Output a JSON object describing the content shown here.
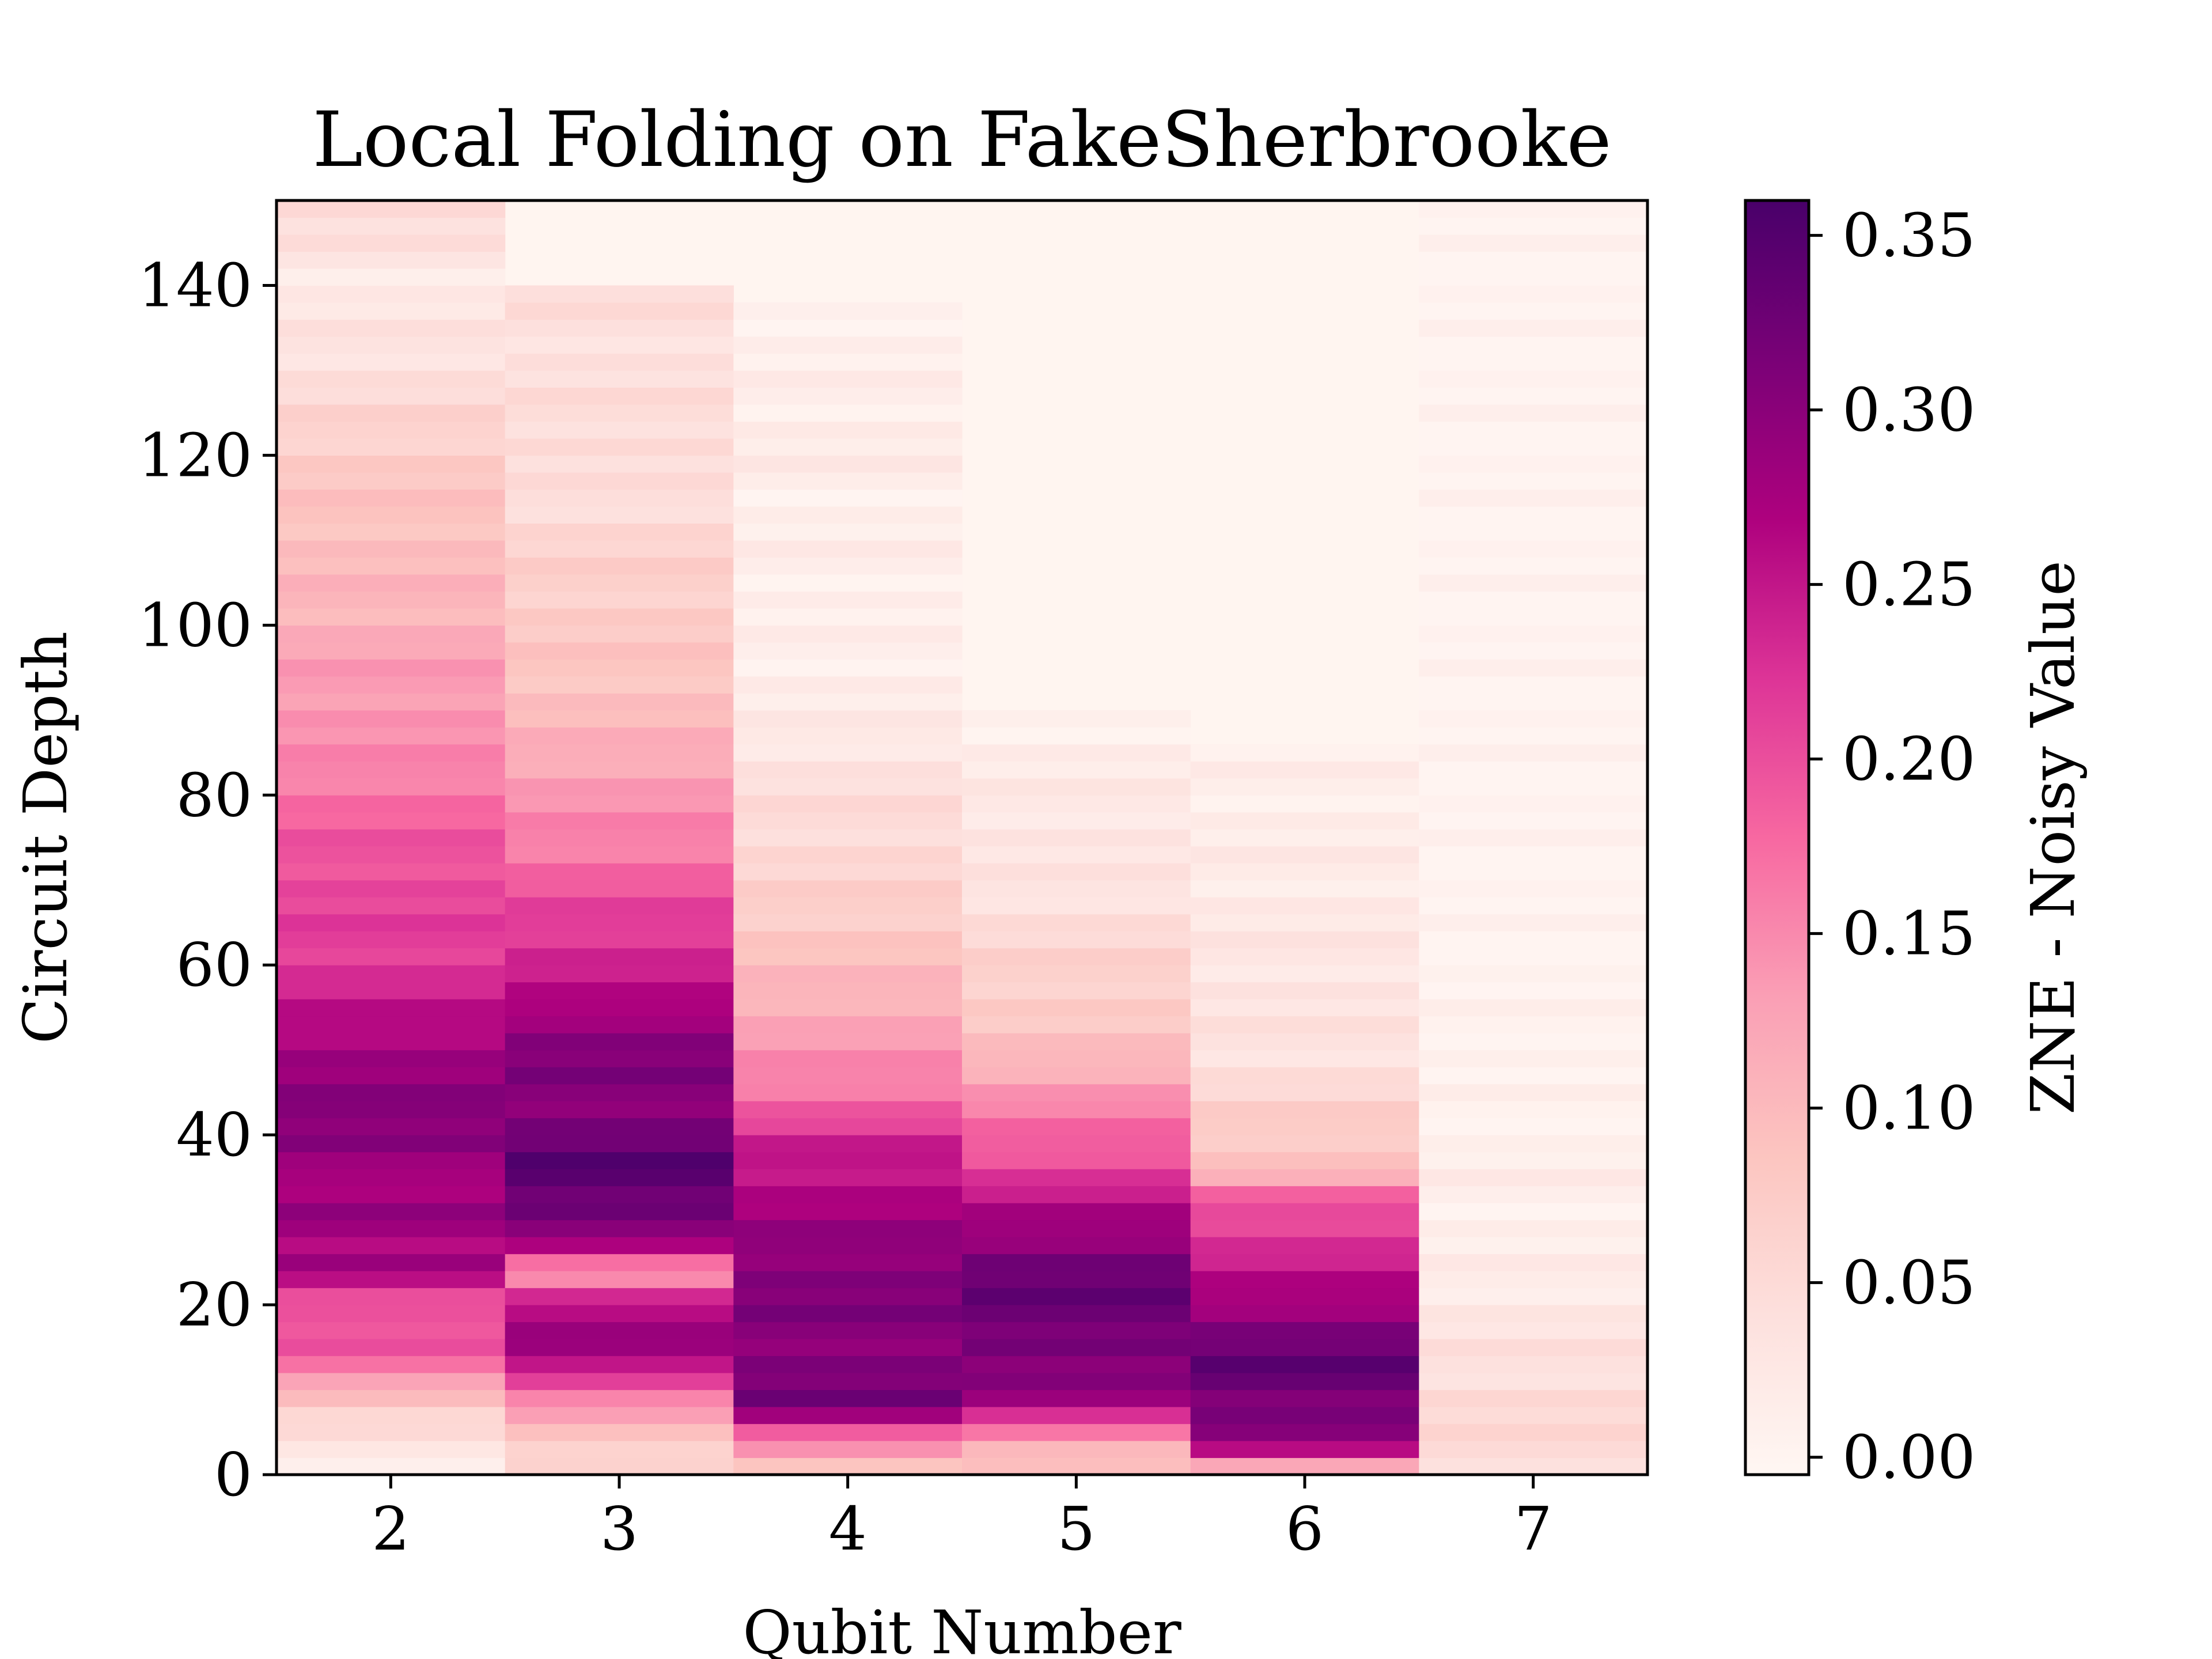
{
  "chart_data": {
    "type": "heatmap",
    "title": "Local Folding on FakeSherbrooke",
    "xlabel": "Qubit Number",
    "ylabel": "Circuit Depth",
    "colorbar_label": "ZNE - Noisy Value",
    "x_categories": [
      "2",
      "3",
      "4",
      "5",
      "6",
      "7"
    ],
    "x_tick_labels": [
      "2",
      "3",
      "4",
      "5",
      "6",
      "7"
    ],
    "y_tick_values": [
      0,
      20,
      40,
      60,
      80,
      100,
      120,
      140
    ],
    "y_tick_labels": [
      "0",
      "20",
      "40",
      "60",
      "80",
      "100",
      "120",
      "140"
    ],
    "colorbar_tick_values": [
      0.0,
      0.05,
      0.1,
      0.15,
      0.2,
      0.25,
      0.3,
      0.35
    ],
    "colorbar_tick_labels": [
      "0.00",
      "0.05",
      "0.10",
      "0.15",
      "0.20",
      "0.25",
      "0.30",
      "0.35"
    ],
    "ylim": [
      0,
      150
    ],
    "vmin": -0.005,
    "vmax": 0.36,
    "colormap": "RdPu",
    "background_color": "#fff5f0",
    "row_step": 2,
    "max_depth_per_qubit": [
      150,
      140,
      138,
      90,
      86,
      150
    ],
    "z_profiles": {
      "2": [
        [
          0,
          0.02
        ],
        [
          4,
          0.03
        ],
        [
          8,
          0.07
        ],
        [
          12,
          0.16
        ],
        [
          16,
          0.2
        ],
        [
          20,
          0.19
        ],
        [
          24,
          0.28
        ],
        [
          28,
          0.26
        ],
        [
          31,
          0.31
        ],
        [
          34,
          0.25
        ],
        [
          38,
          0.3
        ],
        [
          42,
          0.31
        ],
        [
          46,
          0.29
        ],
        [
          50,
          0.28
        ],
        [
          55,
          0.25
        ],
        [
          60,
          0.22
        ],
        [
          66,
          0.21
        ],
        [
          72,
          0.2
        ],
        [
          78,
          0.18
        ],
        [
          84,
          0.15
        ],
        [
          90,
          0.14
        ],
        [
          96,
          0.13
        ],
        [
          100,
          0.11
        ],
        [
          106,
          0.1
        ],
        [
          112,
          0.09
        ],
        [
          118,
          0.08
        ],
        [
          124,
          0.06
        ],
        [
          130,
          0.04
        ],
        [
          136,
          0.03
        ],
        [
          140,
          0.02
        ],
        [
          146,
          0.04
        ],
        [
          150,
          0.05
        ]
      ],
      "3": [
        [
          0,
          0.05
        ],
        [
          6,
          0.1
        ],
        [
          10,
          0.18
        ],
        [
          14,
          0.29
        ],
        [
          20,
          0.26
        ],
        [
          24,
          0.13
        ],
        [
          28,
          0.3
        ],
        [
          32,
          0.33
        ],
        [
          36,
          0.35
        ],
        [
          40,
          0.32
        ],
        [
          44,
          0.3
        ],
        [
          48,
          0.31
        ],
        [
          52,
          0.3
        ],
        [
          56,
          0.26
        ],
        [
          62,
          0.23
        ],
        [
          68,
          0.2
        ],
        [
          74,
          0.16
        ],
        [
          80,
          0.14
        ],
        [
          86,
          0.11
        ],
        [
          92,
          0.09
        ],
        [
          98,
          0.08
        ],
        [
          104,
          0.07
        ],
        [
          110,
          0.06
        ],
        [
          116,
          0.04
        ],
        [
          122,
          0.05
        ],
        [
          130,
          0.04
        ],
        [
          136,
          0.04
        ],
        [
          140,
          0.05
        ]
      ],
      "4": [
        [
          0,
          0.07
        ],
        [
          4,
          0.16
        ],
        [
          8,
          0.32
        ],
        [
          12,
          0.31
        ],
        [
          16,
          0.3
        ],
        [
          20,
          0.31
        ],
        [
          26,
          0.3
        ],
        [
          30,
          0.28
        ],
        [
          34,
          0.26
        ],
        [
          38,
          0.25
        ],
        [
          42,
          0.2
        ],
        [
          46,
          0.16
        ],
        [
          52,
          0.13
        ],
        [
          58,
          0.1
        ],
        [
          64,
          0.08
        ],
        [
          70,
          0.06
        ],
        [
          76,
          0.05
        ],
        [
          82,
          0.04
        ],
        [
          88,
          0.02
        ],
        [
          94,
          0.015
        ],
        [
          100,
          0.01
        ],
        [
          108,
          0.015
        ],
        [
          114,
          0.01
        ],
        [
          120,
          0.02
        ],
        [
          126,
          0.015
        ],
        [
          132,
          0.01
        ],
        [
          138,
          0.01
        ]
      ],
      "5": [
        [
          0,
          0.07
        ],
        [
          4,
          0.12
        ],
        [
          8,
          0.28
        ],
        [
          12,
          0.3
        ],
        [
          16,
          0.32
        ],
        [
          20,
          0.33
        ],
        [
          24,
          0.33
        ],
        [
          28,
          0.29
        ],
        [
          32,
          0.26
        ],
        [
          36,
          0.21
        ],
        [
          40,
          0.18
        ],
        [
          44,
          0.15
        ],
        [
          48,
          0.11
        ],
        [
          52,
          0.08
        ],
        [
          58,
          0.07
        ],
        [
          64,
          0.05
        ],
        [
          70,
          0.03
        ],
        [
          76,
          0.03
        ],
        [
          82,
          0.02
        ],
        [
          86,
          0.015
        ],
        [
          90,
          0.01
        ]
      ],
      "6": [
        [
          0,
          0.06
        ],
        [
          4,
          0.31
        ],
        [
          8,
          0.31
        ],
        [
          12,
          0.34
        ],
        [
          16,
          0.32
        ],
        [
          20,
          0.28
        ],
        [
          24,
          0.25
        ],
        [
          28,
          0.22
        ],
        [
          32,
          0.2
        ],
        [
          36,
          0.09
        ],
        [
          40,
          0.08
        ],
        [
          44,
          0.06
        ],
        [
          48,
          0.04
        ],
        [
          52,
          0.035
        ],
        [
          60,
          0.03
        ],
        [
          70,
          0.02
        ],
        [
          78,
          0.015
        ],
        [
          86,
          0.01
        ]
      ],
      "7": [
        [
          0,
          0.05
        ],
        [
          4,
          0.05
        ],
        [
          8,
          0.055
        ],
        [
          12,
          0.04
        ],
        [
          16,
          0.035
        ],
        [
          20,
          0.025
        ],
        [
          24,
          0.015
        ],
        [
          30,
          0.01
        ],
        [
          36,
          0.015
        ],
        [
          40,
          0.005
        ],
        [
          46,
          0.005
        ],
        [
          52,
          0.005
        ],
        [
          60,
          0.0
        ],
        [
          150,
          0.0
        ]
      ]
    }
  }
}
